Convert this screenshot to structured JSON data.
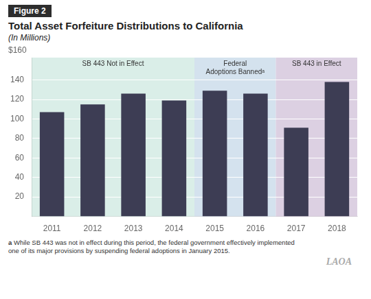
{
  "chart_data": {
    "type": "bar",
    "figure_label": "Figure 2",
    "title": "Total Asset Forfeiture Distributions to California",
    "subtitle": "(In Millions)",
    "ylabel": "$160",
    "categories": [
      "2011",
      "2012",
      "2013",
      "2014",
      "2015",
      "2016",
      "2017",
      "2018"
    ],
    "values": [
      107,
      115,
      126,
      119,
      129,
      126,
      91,
      138
    ],
    "color": "#3d3d54",
    "ylim": [
      0,
      163
    ],
    "yticks": [
      20,
      40,
      60,
      80,
      100,
      120,
      140
    ],
    "grid": true,
    "regions": [
      {
        "label": "SB 443 Not in Effect",
        "from": "2011",
        "to": "2014",
        "color": "#daeee8"
      },
      {
        "label": "Federal\nAdoptions Bannedᵃ",
        "from": "2015",
        "to": "2016",
        "color": "#d4e2ee"
      },
      {
        "label": "SB 443 in Effect",
        "from": "2017",
        "to": "2018",
        "color": "#dcd0e2"
      }
    ],
    "footnote": {
      "marker": "a",
      "text": " While SB 443 was not in effect during this period, the federal government effectively implemented\none of its major provisions by suspending federal adoptions in January 2015."
    },
    "watermark": "LAOA"
  }
}
